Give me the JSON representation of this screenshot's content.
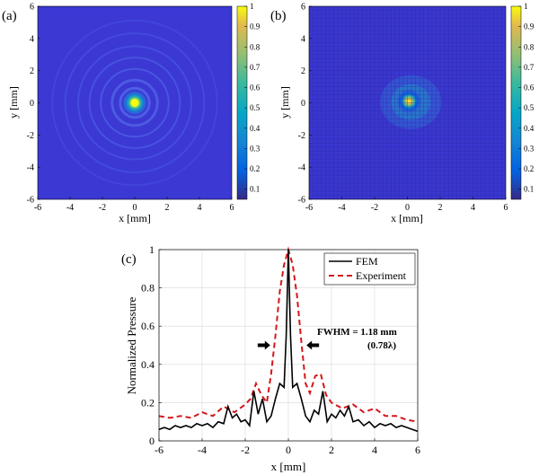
{
  "figure": {
    "panels": [
      "(a)",
      "(b)",
      "(c)"
    ],
    "colors": {
      "map_background": "#3b38d4",
      "map_grid": "#2d2aa8",
      "fem_line": "#000000",
      "experiment_line": "#d4161b",
      "annotation_arrow": "#000000"
    }
  },
  "chart_data": [
    {
      "panel": "(a)",
      "type": "heatmap",
      "title": "",
      "xlabel": "x [mm]",
      "ylabel": "y [mm]",
      "xlim": [
        -6,
        6
      ],
      "ylim": [
        -6,
        6
      ],
      "xticks": [
        "-6",
        "-4",
        "-2",
        "0",
        "2",
        "4",
        "6"
      ],
      "yticks": [
        "-6",
        "-4",
        "-2",
        "0",
        "2",
        "4",
        "6"
      ],
      "colorbar": {
        "range": [
          0.05,
          1
        ],
        "ticks": [
          "0.1",
          "0.2",
          "0.3",
          "0.4",
          "0.5",
          "0.6",
          "0.7",
          "0.8",
          "0.9",
          "1"
        ]
      },
      "focus": {
        "x": 0,
        "y": 0,
        "peak": 1
      },
      "ring_radii_mm": [
        0.9,
        1.4,
        2.1,
        2.8,
        3.5,
        4.3,
        5.1
      ]
    },
    {
      "panel": "(b)",
      "type": "heatmap",
      "title": "",
      "xlabel": "x [mm]",
      "ylabel": "y [mm]",
      "xlim": [
        -6,
        6
      ],
      "ylim": [
        -6,
        6
      ],
      "xticks": [
        "-6",
        "-4",
        "-2",
        "0",
        "2",
        "4",
        "6"
      ],
      "yticks": [
        "-6",
        "-4",
        "-2",
        "0",
        "2",
        "4",
        "6"
      ],
      "colorbar": {
        "range": [
          0.05,
          1
        ],
        "ticks": [
          "0.1",
          "0.2",
          "0.3",
          "0.4",
          "0.5",
          "0.6",
          "0.7",
          "0.8",
          "0.9",
          "1"
        ]
      },
      "focus": {
        "x": 0.1,
        "y": 0.1,
        "peak": 1
      },
      "grid_spacing_mm": 0.25
    },
    {
      "panel": "(c)",
      "type": "line",
      "title": "",
      "xlabel": "x [mm]",
      "ylabel": "Normalized Pressure",
      "xlim": [
        -6,
        6
      ],
      "ylim": [
        0,
        1
      ],
      "xticks": [
        "-6",
        "-4",
        "-2",
        "0",
        "2",
        "4",
        "6"
      ],
      "yticks": [
        "0",
        "0.2",
        "0.4",
        "0.6",
        "0.8",
        "1"
      ],
      "grid": true,
      "legend": "top-right",
      "annotation": {
        "text": "FWHM = 1.18 mm",
        "subtext": "(0.78λ)",
        "x_left": -0.59,
        "x_right": 0.59,
        "y": 0.5
      },
      "series": [
        {
          "name": "FEM",
          "style": "solid",
          "x": [
            -6,
            -5.75,
            -5.5,
            -5.25,
            -5,
            -4.75,
            -4.5,
            -4.25,
            -4,
            -3.75,
            -3.5,
            -3.25,
            -3,
            -2.8,
            -2.6,
            -2.4,
            -2.2,
            -2,
            -1.8,
            -1.6,
            -1.4,
            -1.2,
            -1,
            -0.8,
            -0.6,
            -0.4,
            -0.2,
            -0.1,
            0,
            0.1,
            0.2,
            0.4,
            0.6,
            0.8,
            1,
            1.2,
            1.4,
            1.6,
            1.8,
            2,
            2.2,
            2.4,
            2.6,
            2.8,
            3,
            3.25,
            3.5,
            3.75,
            4,
            4.25,
            4.5,
            4.75,
            5,
            5.25,
            5.5,
            5.75,
            6
          ],
          "y": [
            0.06,
            0.07,
            0.06,
            0.08,
            0.07,
            0.08,
            0.07,
            0.09,
            0.08,
            0.09,
            0.07,
            0.1,
            0.09,
            0.18,
            0.12,
            0.14,
            0.1,
            0.11,
            0.08,
            0.26,
            0.14,
            0.22,
            0.1,
            0.13,
            0.22,
            0.3,
            0.28,
            0.55,
            1.0,
            0.55,
            0.28,
            0.3,
            0.22,
            0.13,
            0.1,
            0.16,
            0.14,
            0.26,
            0.1,
            0.14,
            0.12,
            0.16,
            0.13,
            0.18,
            0.1,
            0.11,
            0.08,
            0.1,
            0.07,
            0.09,
            0.08,
            0.09,
            0.07,
            0.08,
            0.07,
            0.06,
            0.05
          ]
        },
        {
          "name": "Experiment",
          "style": "dashed",
          "x": [
            -6,
            -5.5,
            -5,
            -4.5,
            -4,
            -3.5,
            -3,
            -2.5,
            -2,
            -1.75,
            -1.5,
            -1.25,
            -1,
            -0.8,
            -0.6,
            -0.4,
            -0.2,
            0,
            0.2,
            0.4,
            0.6,
            0.8,
            1,
            1.25,
            1.5,
            1.75,
            2,
            2.5,
            3,
            3.5,
            4,
            4.5,
            5,
            5.5,
            6
          ],
          "y": [
            0.13,
            0.12,
            0.13,
            0.12,
            0.15,
            0.13,
            0.18,
            0.15,
            0.19,
            0.22,
            0.3,
            0.24,
            0.2,
            0.35,
            0.55,
            0.78,
            0.92,
            1.0,
            0.92,
            0.76,
            0.52,
            0.3,
            0.25,
            0.34,
            0.35,
            0.24,
            0.2,
            0.17,
            0.19,
            0.15,
            0.17,
            0.13,
            0.13,
            0.11,
            0.1
          ]
        }
      ]
    }
  ]
}
